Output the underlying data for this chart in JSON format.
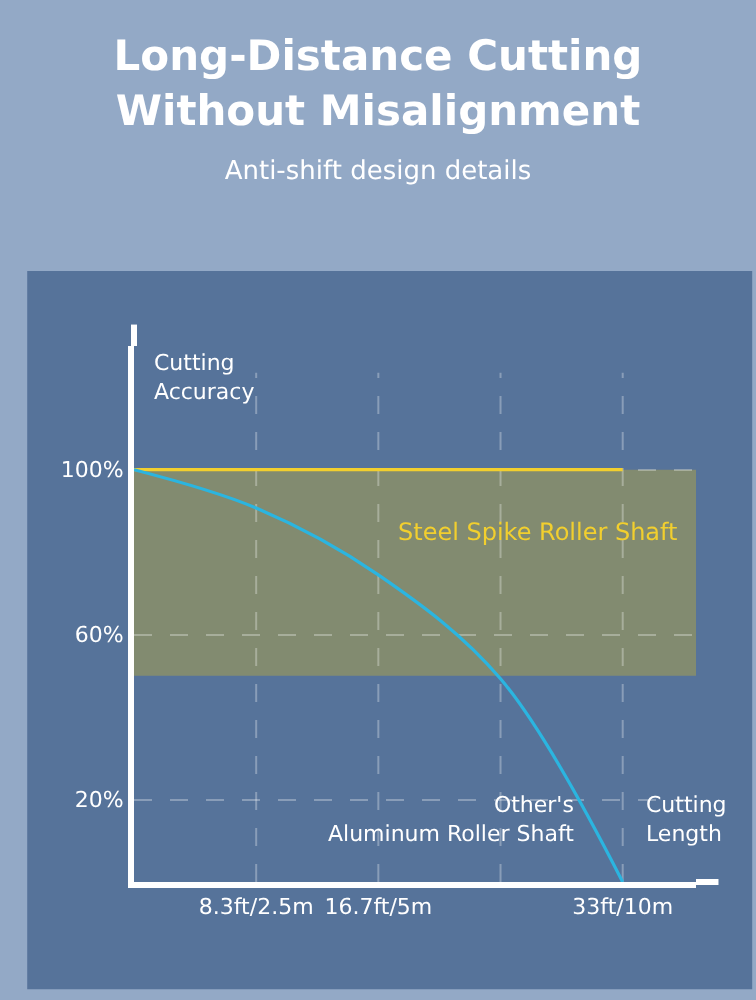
{
  "chart_data": {
    "type": "line",
    "title": "Long-Distance Cutting\nWithout Misalignment",
    "subtitle": "Anti-shift design details",
    "xlabel": "Cutting\nLength",
    "ylabel": "Cutting\nAccuracy",
    "categories": [
      null,
      "8.3ft/2.5m",
      "16.7ft/5m",
      null,
      "33ft/10m"
    ],
    "ylim": [
      0,
      130
    ],
    "yticks": [
      {
        "value": 20,
        "label": "20%"
      },
      {
        "value": 60,
        "label": "60%"
      },
      {
        "value": 100,
        "label": "100%"
      }
    ],
    "grid": true,
    "legend": false,
    "marker": "none",
    "line_style": "solid",
    "bands": [
      {
        "axis": "y",
        "from": 50,
        "to": 100,
        "color": "#b8a93e"
      }
    ],
    "series": [
      {
        "name": "Steel Spike Roller Shaft",
        "color": "#f2cf2e",
        "values": [
          100,
          100,
          100,
          100,
          100
        ]
      },
      {
        "name": "Other's\nAluminum Roller Shaft",
        "color": "#2bb5e0",
        "values": [
          100,
          90.7,
          74.5,
          49.3,
          0
        ]
      }
    ]
  }
}
